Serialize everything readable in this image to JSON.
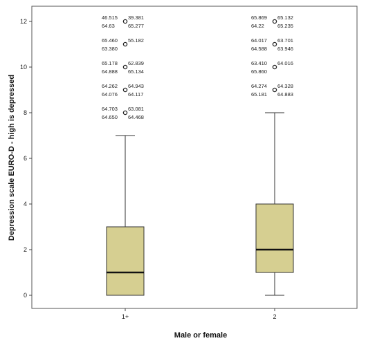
{
  "chart_data": {
    "type": "boxplot",
    "xlabel": "Male or female",
    "ylabel": "Depression scale EURO-D - high is depressed",
    "ylim": [
      -0.5,
      12.6
    ],
    "y_ticks": [
      "0",
      "2",
      "4",
      "6",
      "8",
      "10",
      "12"
    ],
    "categories": [
      "1+",
      "2"
    ],
    "colors": {
      "box_fill": "#d6cf91",
      "box_stroke": "#333333",
      "median": "#111111",
      "background": "#ffffff",
      "frame": "#555555"
    },
    "boxes": [
      {
        "category": "1+",
        "whisker_low": 0,
        "q1": 0,
        "median": 1,
        "q3": 3,
        "whisker_high": 7,
        "outliers": [
          {
            "y": 8,
            "labels": [
              "64.703",
              "63.081",
              "64.650",
              "64.468"
            ]
          },
          {
            "y": 9,
            "labels": [
              "64.262",
              "64.943",
              "64.076",
              "64.117"
            ]
          },
          {
            "y": 10,
            "labels": [
              "65.178",
              "62.839",
              "64.888",
              "65.134"
            ]
          },
          {
            "y": 11,
            "labels": [
              "65.460",
              "55.182",
              "63.380"
            ]
          },
          {
            "y": 12,
            "labels": [
              "46.515",
              "39.381",
              "64.63",
              "65.277"
            ]
          }
        ]
      },
      {
        "category": "2",
        "whisker_low": 0,
        "q1": 1,
        "median": 2,
        "q3": 4,
        "whisker_high": 8,
        "outliers": [
          {
            "y": 9,
            "labels": [
              "64.274",
              "64.328",
              "65.181",
              "64.883"
            ]
          },
          {
            "y": 10,
            "labels": [
              "63.410",
              "64.016",
              "65.860"
            ]
          },
          {
            "y": 11,
            "labels": [
              "64.017",
              "63.701",
              "64.588",
              "63.946"
            ]
          },
          {
            "y": 12,
            "labels": [
              "65.869",
              "65.132",
              "64.22",
              "65.235"
            ]
          }
        ]
      }
    ]
  }
}
